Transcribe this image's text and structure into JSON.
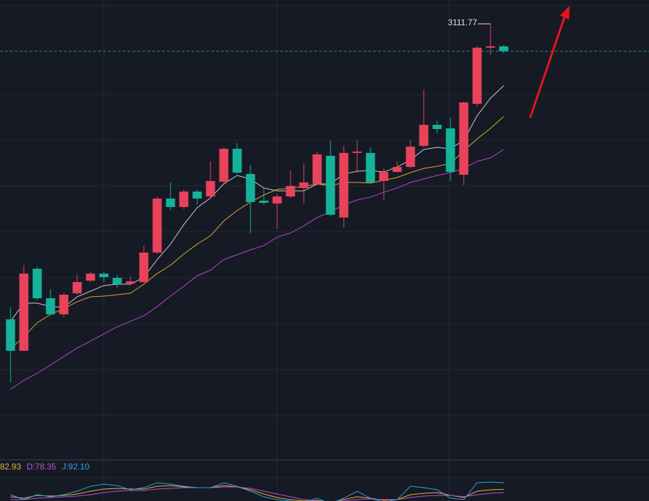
{
  "chart_data": [
    {
      "type": "candlestick",
      "open": [
        2720.2,
        2678.4,
        2787.2,
        2748.1,
        2726.8,
        2754.7,
        2771.4,
        2780.7,
        2775.1,
        2767.7,
        2769.5,
        2808.6,
        2880.2,
        2869.0,
        2889.5,
        2883.0,
        2902.5,
        2946.2,
        2912.8,
        2877.4,
        2873.7,
        2883.0,
        2894.2,
        2899.7,
        2936.9,
        2855.1,
        2940.7,
        2940.7,
        2903.5,
        2915.5,
        2922.1,
        2950.0,
        2977.9,
        2973.2,
        2911.8,
        3005.8,
        3080.2,
        3082.0
      ],
      "close": [
        2678.4,
        2780.7,
        2748.1,
        2726.8,
        2752.8,
        2769.5,
        2780.7,
        2776.0,
        2766.7,
        2770.5,
        2808.6,
        2880.2,
        2869.0,
        2889.5,
        2880.2,
        2903.5,
        2946.2,
        2914.6,
        2875.6,
        2874.6,
        2883.0,
        2896.9,
        2901.6,
        2938.8,
        2858.8,
        2940.7,
        2942.5,
        2901.6,
        2915.5,
        2922.1,
        2949.0,
        2977.9,
        2972.3,
        2915.5,
        3007.6,
        3080.2,
        3082.0,
        3075.5
      ],
      "high": [
        2736.1,
        2791.9,
        2790.0,
        2760.2,
        2754.7,
        2778.8,
        2783.5,
        2782.6,
        2778.8,
        2777.0,
        2817.9,
        2883.0,
        2901.6,
        2892.3,
        2892.3,
        2929.5,
        2948.1,
        2953.7,
        2924.8,
        2894.2,
        2885.8,
        2917.4,
        2926.7,
        2942.5,
        2957.4,
        2950.0,
        2957.4,
        2948.1,
        2920.2,
        2929.5,
        2957.4,
        3024.4,
        2983.4,
        2987.2,
        3008.5,
        3082.0,
        3111.77,
        3083.9
      ],
      "low": [
        2636.5,
        2678.4,
        2745.4,
        2724.9,
        2723.0,
        2752.8,
        2769.5,
        2769.5,
        2762.1,
        2765.8,
        2768.6,
        2806.7,
        2864.4,
        2866.3,
        2871.8,
        2881.1,
        2899.7,
        2912.8,
        2834.6,
        2871.8,
        2840.2,
        2881.1,
        2873.7,
        2897.9,
        2857.0,
        2841.1,
        2914.6,
        2899.7,
        2878.3,
        2914.6,
        2920.2,
        2948.1,
        2966.7,
        2903.5,
        2897.9,
        3002.0,
        3070.9,
        3072.7
      ],
      "up_color": "#e8435a",
      "down_color": "#14b39a",
      "ylim": [
        2534.2,
        3143.4
      ],
      "ma_lines": [
        {
          "color": "#c9ccd2",
          "values": [
            2717.5,
            2741.6,
            2741.6,
            2737.0,
            2736.1,
            2750.0,
            2757.4,
            2764.9,
            2766.7,
            2766.7,
            2776.0,
            2799.3,
            2819.8,
            2845.8,
            2868.1,
            2881.1,
            2899.7,
            2910.9,
            2906.2,
            2894.2,
            2890.4,
            2890.4,
            2890.4,
            2899.7,
            2899.7,
            2912.8,
            2916.5,
            2917.4,
            2915.5,
            2922.1,
            2931.4,
            2945.3,
            2948.1,
            2946.2,
            2957.4,
            2989.9,
            3013.2,
            3029.9
          ]
        },
        {
          "color": "#d9a82b",
          "values": [
            2681.2,
            2697.0,
            2715.6,
            2726.8,
            2734.2,
            2743.5,
            2750.0,
            2750.9,
            2752.8,
            2754.7,
            2766.7,
            2780.7,
            2791.9,
            2806.7,
            2819.8,
            2830.9,
            2850.5,
            2864.4,
            2875.6,
            2884.9,
            2892.3,
            2894.2,
            2896.0,
            2899.7,
            2897.0,
            2901.6,
            2901.6,
            2900.7,
            2904.4,
            2908.1,
            2914.6,
            2920.2,
            2923.0,
            2926.7,
            2943.4,
            2959.3,
            2973.2,
            2989.0
          ]
        },
        {
          "color": "#b645d6",
          "values": [
            2627.2,
            2639.3,
            2648.6,
            2659.8,
            2671.0,
            2682.1,
            2691.4,
            2700.7,
            2710.0,
            2717.5,
            2724.9,
            2737.0,
            2750.9,
            2764.0,
            2777.9,
            2785.3,
            2799.3,
            2805.8,
            2812.3,
            2817.9,
            2829.1,
            2834.6,
            2843.9,
            2855.1,
            2862.5,
            2871.8,
            2878.3,
            2882.1,
            2888.6,
            2894.2,
            2901.6,
            2906.2,
            2910.9,
            2914.6,
            2920.2,
            2929.5,
            2934.1,
            2945.3
          ]
        }
      ],
      "last_price_line": true
    },
    {
      "type": "line",
      "ylim": [
        66.6,
        122.5
      ],
      "series": [
        {
          "color": "#e5b43c",
          "last_label": "82.93",
          "values": [
            72.5,
            70.5,
            74.5,
            73.5,
            74.5,
            76.4,
            80.3,
            83.3,
            84.3,
            83.3,
            83.3,
            87.2,
            88.2,
            86.2,
            85.2,
            85.2,
            88.2,
            86.2,
            82.3,
            76.4,
            71.5,
            68.6,
            66.6,
            67.6,
            64.7,
            68.6,
            72.5,
            70.5,
            67.6,
            68.6,
            75.4,
            77.4,
            78.4,
            74.5,
            71.5,
            80.3,
            82.3,
            82.93
          ]
        },
        {
          "color": "#c050d0",
          "last_label": "D:78.35",
          "values": [
            68.6,
            68.6,
            70.5,
            71.5,
            72.5,
            73.5,
            75.4,
            78.4,
            80.3,
            81.3,
            81.3,
            83.3,
            84.3,
            85.2,
            85.2,
            85.2,
            86.2,
            86.2,
            84.3,
            80.3,
            76.4,
            72.5,
            68.6,
            66.6,
            65.6,
            66.6,
            68.6,
            69.6,
            68.6,
            68.6,
            71.5,
            73.5,
            74.5,
            74.5,
            72.5,
            75.4,
            77.4,
            78.35
          ]
        },
        {
          "color": "#2aa6e0",
          "last_label": "J:92.10",
          "values": [
            75.4,
            68.6,
            75.4,
            72.5,
            75.4,
            80.3,
            87.2,
            90.1,
            88.2,
            82.3,
            85.2,
            92.1,
            90.1,
            87.2,
            85.2,
            85.2,
            92.1,
            87.2,
            80.3,
            72.5,
            68.6,
            66.6,
            64.7,
            70.5,
            62.7,
            70.5,
            80.3,
            70.5,
            64.7,
            68.6,
            87.2,
            85.2,
            82.3,
            70.5,
            68.6,
            92.1,
            93.1,
            92.1
          ]
        }
      ]
    }
  ]
}
